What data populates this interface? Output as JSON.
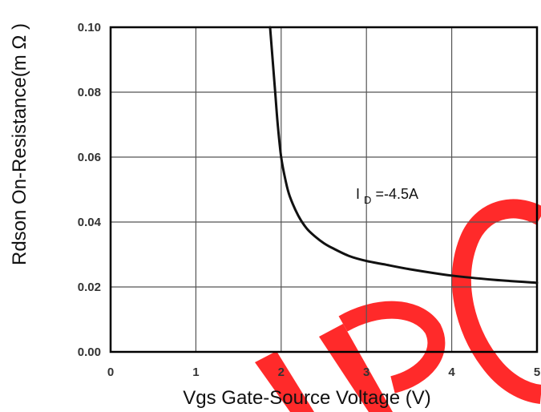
{
  "chart_data": {
    "type": "line",
    "xlabel": "Vgs Gate-Source Voltage (V)",
    "ylabel": "Rdson On-Resistance(m Ω )",
    "xlim": [
      0,
      5
    ],
    "ylim": [
      0.0,
      0.1
    ],
    "x_ticks": [
      "0",
      "1",
      "2",
      "3",
      "4",
      "5"
    ],
    "y_ticks": [
      "0.00",
      "0.02",
      "0.04",
      "0.06",
      "0.08",
      "0.10"
    ],
    "grid": true,
    "series": [
      {
        "x": [
          1.87,
          1.9,
          1.93,
          1.96,
          2.0,
          2.05,
          2.1,
          2.2,
          2.3,
          2.4,
          2.5,
          2.6,
          2.8,
          3.0,
          3.2,
          3.5,
          4.0,
          4.5,
          5.0
        ],
        "y": [
          0.1,
          0.09,
          0.08,
          0.07,
          0.06,
          0.053,
          0.048,
          0.042,
          0.038,
          0.0355,
          0.0335,
          0.032,
          0.0295,
          0.028,
          0.027,
          0.0255,
          0.0235,
          0.0222,
          0.0213
        ]
      }
    ],
    "annotations": [
      {
        "text": "I",
        "subscript": "D",
        "suffix": " =-4.5A"
      }
    ]
  },
  "watermark": {
    "color": "#ff2a2a",
    "letters": "IPC"
  },
  "colors": {
    "frame": "#000000",
    "grid": "#555555",
    "curve": "#111111"
  }
}
